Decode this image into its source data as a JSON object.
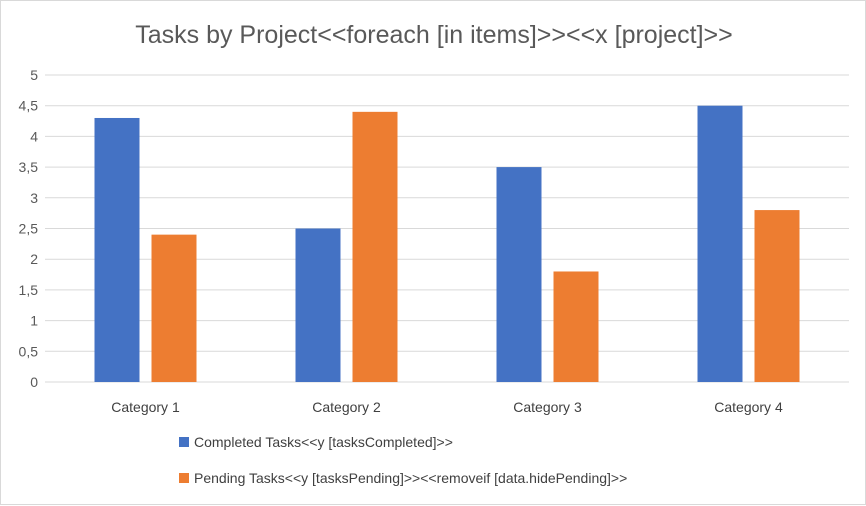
{
  "chart_data": {
    "type": "bar",
    "title": "Tasks by Project<<foreach [in items]>><<x [project]>>",
    "categories": [
      "Category 1",
      "Category 2",
      "Category 3",
      "Category 4"
    ],
    "series": [
      {
        "name": "Completed Tasks<<y [tasksCompleted]>>",
        "values": [
          4.3,
          2.5,
          3.5,
          4.5
        ],
        "color": "#4472c4"
      },
      {
        "name": "Pending Tasks<<y [tasksPending]>><<removeif [data.hidePending]>>",
        "values": [
          2.4,
          4.4,
          1.8,
          2.8
        ],
        "color": "#ed7d31"
      }
    ],
    "ylim": [
      0,
      5
    ],
    "yticks": [
      "0",
      "0,5",
      "1",
      "1,5",
      "2",
      "2,5",
      "3",
      "3,5",
      "4",
      "4,5",
      "5"
    ],
    "grid": true,
    "legend": "bottom"
  }
}
